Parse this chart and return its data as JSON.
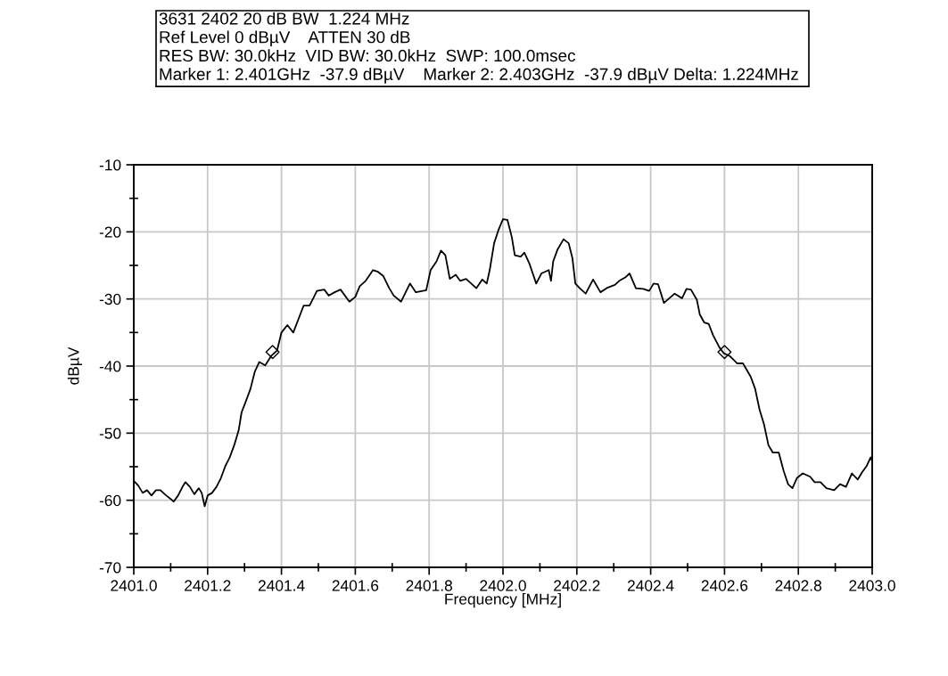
{
  "chart_data": {
    "type": "line",
    "title": "3631 2402 20 dB BW  1.224 MHz",
    "annotations": [
      "Ref Level 0 dBµV    ATTEN 30 dB",
      "RES BW: 30.0kHz  VID BW: 30.0kHz  SWP: 100.0msec",
      "Marker 1: 2.401GHz  -37.9 dBµV    Marker 2: 2.403GHz  -37.9 dBµV Delta: 1.224MHz"
    ],
    "xlabel": "Frequency [MHz]",
    "ylabel": "dBµV",
    "xlim": [
      2401.0,
      2403.0
    ],
    "ylim": [
      -70,
      -10
    ],
    "xticks": [
      {
        "value": 2401.0,
        "label": "2401.0"
      },
      {
        "value": 2401.1,
        "label": null
      },
      2401.2,
      {
        "value": 2401.3,
        "label": null
      },
      2401.4,
      {
        "value": 2401.5,
        "label": null
      },
      2401.6,
      {
        "value": 2401.7,
        "label": null
      },
      2401.8,
      {
        "value": 2401.9,
        "label": null
      },
      {
        "value": 2402.0,
        "label": "2402.0"
      },
      {
        "value": 2402.1,
        "label": null
      },
      2402.2,
      {
        "value": 2402.3,
        "label": null
      },
      2402.4,
      {
        "value": 2402.5,
        "label": null
      },
      2402.6,
      {
        "value": 2402.7,
        "label": null
      },
      2402.8,
      {
        "value": 2402.9,
        "label": null
      },
      {
        "value": 2403.0,
        "label": "2403.0"
      }
    ],
    "yticks": [
      -70,
      {
        "value": -65,
        "label": null
      },
      -60,
      {
        "value": -55,
        "label": null
      },
      -50,
      {
        "value": -45,
        "label": null
      },
      -40,
      {
        "value": -35,
        "label": null
      },
      -30,
      {
        "value": -25,
        "label": null
      },
      -20,
      {
        "value": -15,
        "label": null
      },
      -10
    ],
    "grid": true,
    "series": [
      {
        "color": "#000000",
        "x": [
          2401.0,
          2401.012,
          2401.024,
          2401.036,
          2401.048,
          2401.06,
          2401.072,
          2401.088,
          2401.1,
          2401.108,
          2401.12,
          2401.132,
          2401.14,
          2401.152,
          2401.164,
          2401.176,
          2401.184,
          2401.192,
          2401.2,
          2401.212,
          2401.224,
          2401.236,
          2401.248,
          2401.26,
          2401.272,
          2401.284,
          2401.292,
          2401.304,
          2401.316,
          2401.328,
          2401.34,
          2401.356,
          2401.372,
          2401.388,
          2401.4,
          2401.416,
          2401.432,
          2401.444,
          2401.46,
          2401.476,
          2401.488,
          2401.496,
          2401.516,
          2401.528,
          2401.544,
          2401.56,
          2401.584,
          2401.6,
          2401.612,
          2401.628,
          2401.648,
          2401.66,
          2401.676,
          2401.692,
          2401.704,
          2401.724,
          2401.748,
          2401.764,
          2401.792,
          2401.804,
          2401.82,
          2401.832,
          2401.844,
          2401.856,
          2401.872,
          2401.884,
          2401.9,
          2401.928,
          2401.944,
          2401.956,
          2401.964,
          2401.976,
          2401.988,
          2402.0,
          2402.012,
          2402.024,
          2402.032,
          2402.048,
          2402.058,
          2402.072,
          2402.09,
          2402.104,
          2402.124,
          2402.13,
          2402.136,
          2402.148,
          2402.164,
          2402.178,
          2402.188,
          2402.196,
          2402.208,
          2402.224,
          2402.244,
          2402.264,
          2402.284,
          2402.303,
          2402.315,
          2402.331,
          2402.343,
          2402.36,
          2402.38,
          2402.396,
          2402.408,
          2402.42,
          2402.436,
          2402.465,
          2402.485,
          2402.497,
          2402.509,
          2402.525,
          2402.533,
          2402.545,
          2402.557,
          2402.569,
          2402.586,
          2402.598,
          2402.614,
          2402.634,
          2402.65,
          2402.671,
          2402.683,
          2402.695,
          2402.707,
          2402.719,
          2402.731,
          2402.747,
          2402.76,
          2402.772,
          2402.784,
          2402.796,
          2402.812,
          2402.832,
          2402.844,
          2402.86,
          2402.876,
          2402.897,
          2402.913,
          2402.929,
          2402.945,
          2402.961,
          2402.973,
          2402.985,
          2402.996,
          2403.0
        ],
        "values": [
          -57.1,
          -57.8,
          -58.9,
          -58.5,
          -59.3,
          -58.5,
          -58.5,
          -59.3,
          -59.8,
          -60.2,
          -59.3,
          -58.0,
          -57.3,
          -58.0,
          -59.1,
          -58.2,
          -58.9,
          -60.9,
          -59.3,
          -58.9,
          -58.0,
          -56.7,
          -54.9,
          -53.6,
          -51.8,
          -49.6,
          -46.9,
          -45.2,
          -43.4,
          -40.8,
          -39.4,
          -39.9,
          -38.5,
          -37.7,
          -35.0,
          -33.9,
          -35.0,
          -33.3,
          -31.0,
          -31.0,
          -29.7,
          -28.8,
          -28.6,
          -29.5,
          -29.0,
          -28.6,
          -30.4,
          -29.7,
          -28.1,
          -27.3,
          -25.7,
          -25.9,
          -26.6,
          -28.4,
          -29.5,
          -30.4,
          -27.7,
          -29.0,
          -28.7,
          -25.7,
          -24.4,
          -22.8,
          -23.5,
          -27.0,
          -26.4,
          -27.3,
          -27.0,
          -28.4,
          -27.1,
          -27.7,
          -25.7,
          -21.7,
          -19.7,
          -18.1,
          -18.2,
          -20.8,
          -23.5,
          -23.7,
          -23.1,
          -24.8,
          -27.7,
          -26.2,
          -25.7,
          -27.3,
          -24.4,
          -22.6,
          -21.1,
          -21.7,
          -23.9,
          -27.7,
          -28.4,
          -29.2,
          -27.1,
          -29.0,
          -28.3,
          -27.9,
          -27.3,
          -26.8,
          -26.2,
          -28.4,
          -28.5,
          -28.8,
          -27.7,
          -27.8,
          -30.6,
          -29.2,
          -29.9,
          -28.5,
          -28.6,
          -30.1,
          -32.3,
          -33.5,
          -33.7,
          -35.4,
          -37.2,
          -38.1,
          -38.5,
          -39.6,
          -39.6,
          -41.6,
          -43.4,
          -46.5,
          -48.7,
          -51.8,
          -52.9,
          -52.9,
          -55.6,
          -57.6,
          -58.2,
          -56.7,
          -56.0,
          -56.5,
          -57.3,
          -57.3,
          -58.2,
          -58.5,
          -57.6,
          -58.0,
          -56.0,
          -56.9,
          -55.8,
          -54.9,
          -53.6,
          -54.2
        ]
      },
      {
        "type": "scatter",
        "color": "#000000",
        "marker": "diamond",
        "x": [
          2401.376,
          2402.6
        ],
        "values": [
          -37.9,
          -37.9
        ]
      }
    ]
  }
}
